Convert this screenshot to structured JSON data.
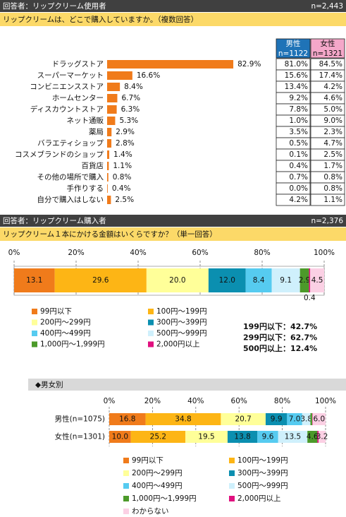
{
  "section1": {
    "header": "回答者：リップクリーム使用者",
    "n": "n=2,443",
    "question": "リップクリームは、どこで購入していますか。（複数回答）"
  },
  "table": {
    "columns": [
      {
        "label": "男性",
        "n": "n=1122",
        "cells": [
          "81.0%",
          "15.6%",
          "13.4%",
          "9.2%",
          "7.8%",
          "1.0%",
          "3.5%",
          "0.5%",
          "0.1%",
          "0.4%",
          "0.7%",
          "0.0%",
          "4.2%"
        ]
      },
      {
        "label": "女性",
        "n": "n=1321",
        "cells": [
          "84.5%",
          "17.4%",
          "4.2%",
          "4.6%",
          "5.0%",
          "9.0%",
          "2.3%",
          "4.7%",
          "2.5%",
          "1.7%",
          "0.8%",
          "0.8%",
          "1.1%"
        ]
      }
    ]
  },
  "section2": {
    "header": "回答者：リップクリーム購入者",
    "n": "n=2,376",
    "question": "リップクリーム１本にかける金額はいくらですか？（単一回答）",
    "summary": [
      "199円以下：42.7%",
      "299円以下：62.7%",
      "500円以上：12.4%"
    ]
  },
  "section3": {
    "header": "◆男女別"
  },
  "chart_data": [
    {
      "type": "hbar",
      "color": "#f07b1b",
      "categories": [
        "ドラッグストア",
        "スーパーマーケット",
        "コンビニエンスストア",
        "ホームセンター",
        "ディスカウントストア",
        "ネット通販",
        "薬局",
        "バラエティショップ",
        "コスメブランドのショップ",
        "百貨店",
        "その他の場所で購入",
        "手作りする",
        "自分で購入はしない"
      ],
      "values": [
        82.9,
        16.6,
        8.4,
        6.7,
        6.3,
        5.3,
        2.9,
        2.8,
        1.4,
        1.1,
        0.8,
        0.4,
        2.5
      ],
      "value_labels": [
        "82.9%",
        "16.6%",
        "8.4%",
        "6.7%",
        "6.3%",
        "5.3%",
        "2.9%",
        "2.8%",
        "1.4%",
        "1.1%",
        "0.8%",
        "0.4%",
        "2.5%"
      ]
    },
    {
      "type": "stacked",
      "categories": [
        null
      ],
      "xlim": [
        0,
        100
      ],
      "xticks": [
        {
          "value": 0,
          "label": "0%"
        },
        {
          "value": 20,
          "label": "20%"
        },
        {
          "value": 40,
          "label": "40%"
        },
        {
          "value": 60,
          "label": "60%"
        },
        {
          "value": 80,
          "label": "80%"
        },
        {
          "value": 100,
          "label": "100%"
        }
      ],
      "grid": true,
      "series": [
        {
          "name": "99円以下",
          "color": "#f07b1b",
          "values": [
            13.1
          ],
          "value_labels": [
            "13.1"
          ]
        },
        {
          "name": "100円～199円",
          "color": "#fdb515",
          "values": [
            29.6
          ],
          "value_labels": [
            "29.6"
          ]
        },
        {
          "name": "200円～299円",
          "color": "#ffff99",
          "values": [
            20.0
          ],
          "value_labels": [
            "20.0"
          ]
        },
        {
          "name": "300円～399円",
          "color": "#0b8fb0",
          "values": [
            12.0
          ],
          "value_labels": [
            "12.0"
          ]
        },
        {
          "name": "400円～499円",
          "color": "#56cbf0",
          "values": [
            8.4
          ],
          "value_labels": [
            "8.4"
          ]
        },
        {
          "name": "500円～999円",
          "color": "#cff0fc",
          "values": [
            9.1
          ],
          "value_labels": [
            "9.1"
          ]
        },
        {
          "name": "1,000円～1,999円",
          "color": "#4c9a2a",
          "values": [
            2.9
          ],
          "value_labels": [
            "2.9"
          ]
        },
        {
          "name": "2,000円以上",
          "color": "#e0107f",
          "values": [
            0.4
          ],
          "value_labels": [
            "0.4"
          ]
        },
        {
          "name": null,
          "color": "#fbd0e4",
          "values": [
            4.5
          ],
          "value_labels": [
            "4.5"
          ]
        }
      ]
    },
    {
      "type": "stacked",
      "categories": [
        "男性(n=1075)",
        "女性(n=1301)"
      ],
      "xlim": [
        0,
        100
      ],
      "xticks": [
        {
          "value": 0,
          "label": "0%"
        },
        {
          "value": 20,
          "label": "20%"
        },
        {
          "value": 40,
          "label": "40%"
        },
        {
          "value": 60,
          "label": "60%"
        },
        {
          "value": 80,
          "label": "80%"
        },
        {
          "value": 100,
          "label": "100%"
        }
      ],
      "grid": true,
      "series": [
        {
          "name": "99円以下",
          "color": "#f07b1b",
          "values": [
            16.8,
            10.0
          ],
          "value_labels": [
            "16.8",
            "10.0"
          ]
        },
        {
          "name": "100円～199円",
          "color": "#fdb515",
          "values": [
            34.8,
            25.2
          ],
          "value_labels": [
            "34.8",
            "25.2"
          ]
        },
        {
          "name": "200円～299円",
          "color": "#ffff99",
          "values": [
            20.7,
            19.5
          ],
          "value_labels": [
            "20.7",
            "19.5"
          ]
        },
        {
          "name": "300円～399円",
          "color": "#0b8fb0",
          "values": [
            9.9,
            13.8
          ],
          "value_labels": [
            "9.9",
            "13.8"
          ]
        },
        {
          "name": "400円～499円",
          "color": "#56cbf0",
          "values": [
            7.0,
            9.6
          ],
          "value_labels": [
            "7.0",
            "9.6"
          ]
        },
        {
          "name": "500円～999円",
          "color": "#cff0fc",
          "values": [
            3.8,
            13.5
          ],
          "value_labels": [
            "3.8",
            "13.5"
          ]
        },
        {
          "name": "1,000円～1,999円",
          "color": "#4c9a2a",
          "values": [
            0.8,
            4.6
          ],
          "value_labels": [
            null,
            "4.6"
          ]
        },
        {
          "name": "2,000円以上",
          "color": "#e0107f",
          "values": [
            0.2,
            0.6
          ],
          "value_labels": [
            null,
            null
          ]
        },
        {
          "name": "わからない",
          "color": "#fbd0e4",
          "values": [
            6.0,
            3.2
          ],
          "value_labels": [
            "6.0",
            "3.2"
          ]
        }
      ]
    }
  ]
}
